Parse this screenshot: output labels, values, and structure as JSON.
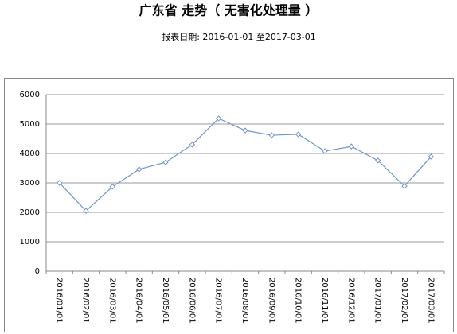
{
  "chart_data": {
    "type": "line",
    "title": "广东省 走势（ 无害化处理量 ）",
    "subtitle": "报表日期: 2016-01-01 至2017-03-01",
    "categories": [
      "2016/01/01",
      "2016/02/01",
      "2016/03/01",
      "2016/04/01",
      "2016/05/01",
      "2016/06/01",
      "2016/07/01",
      "2016/08/01",
      "2016/09/01",
      "2016/10/01",
      "2016/11/01",
      "2016/12/01",
      "2017/01/01",
      "2017/02/01",
      "2017/03/01"
    ],
    "values": [
      3000,
      2050,
      2870,
      3460,
      3700,
      4300,
      5190,
      4780,
      4620,
      4650,
      4080,
      4240,
      3760,
      2890,
      3890
    ],
    "color": "#6f94cc",
    "ylim": [
      0,
      6000
    ],
    "yticks": [
      0,
      1000,
      2000,
      3000,
      4000,
      5000,
      6000
    ],
    "grid": true
  }
}
